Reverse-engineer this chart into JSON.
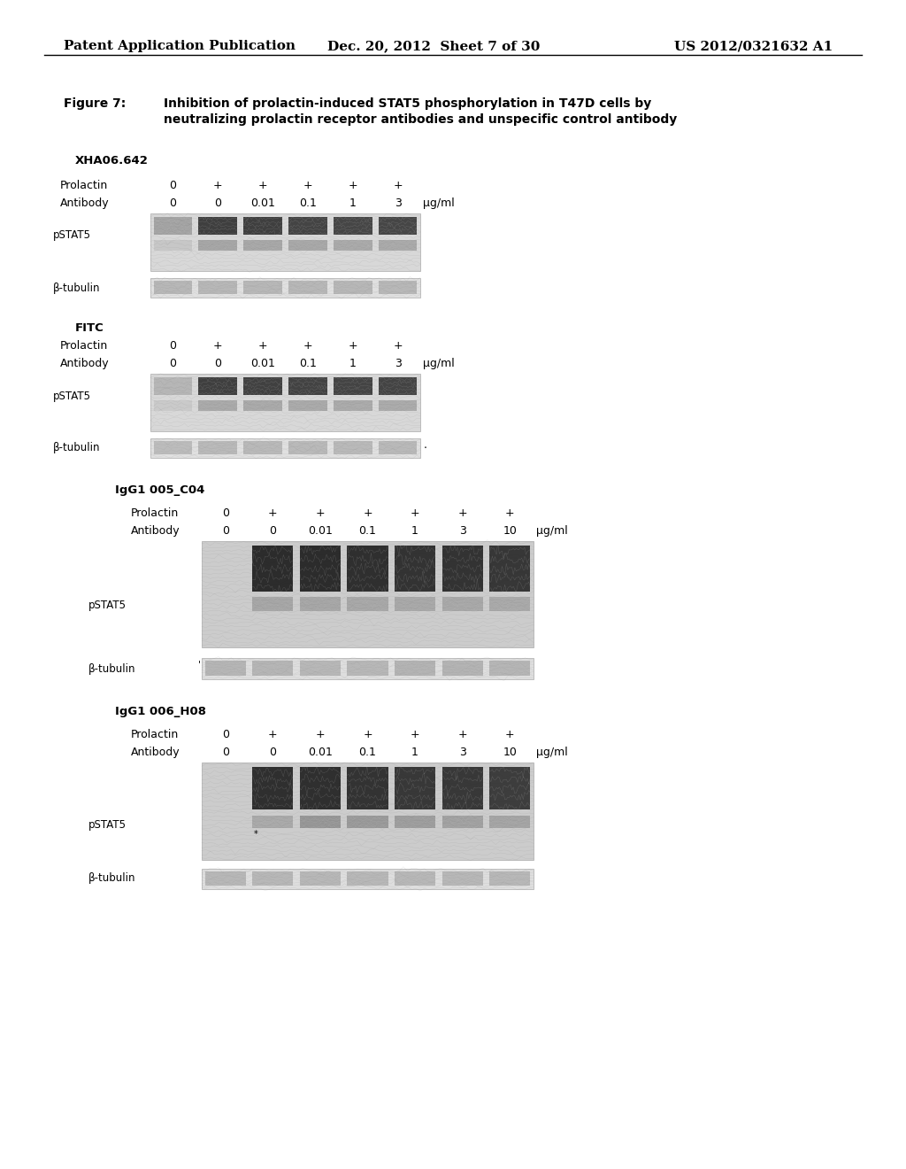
{
  "bg_color": "#ffffff",
  "header_left": "Patent Application Publication",
  "header_center": "Dec. 20, 2012  Sheet 7 of 30",
  "header_right": "US 2012/0321632 A1",
  "fig_label": "Figure 7:",
  "fig_title1": "Inhibition of prolactin-induced STAT5 phosphorylation in T47D cells by",
  "fig_title2": "neutralizing prolactin receptor antibodies and unspecific control antibody",
  "p1_name": "XHA06.642",
  "p2_name": "FITC",
  "p3_name": "IgG1 005_C04",
  "p4_name": "IgG1 006_H08",
  "lbl_prolactin": "Prolactin",
  "lbl_antibody": "Antibody",
  "lbl_pstat5": "pSTAT5",
  "lbl_tubulin": "β-tubulin",
  "lbl_ugml": "μg/ml",
  "vals6_prl": [
    "0",
    "+",
    "+",
    "+",
    "+",
    "+"
  ],
  "vals6_ab": [
    "0",
    "0",
    "0.01",
    "0.1",
    "1",
    "3"
  ],
  "vals7_prl": [
    "0",
    "+",
    "+",
    "+",
    "+",
    "+",
    "+"
  ],
  "vals7_ab": [
    "0",
    "0",
    "0.01",
    "0.1",
    "1",
    "3",
    "10"
  ]
}
